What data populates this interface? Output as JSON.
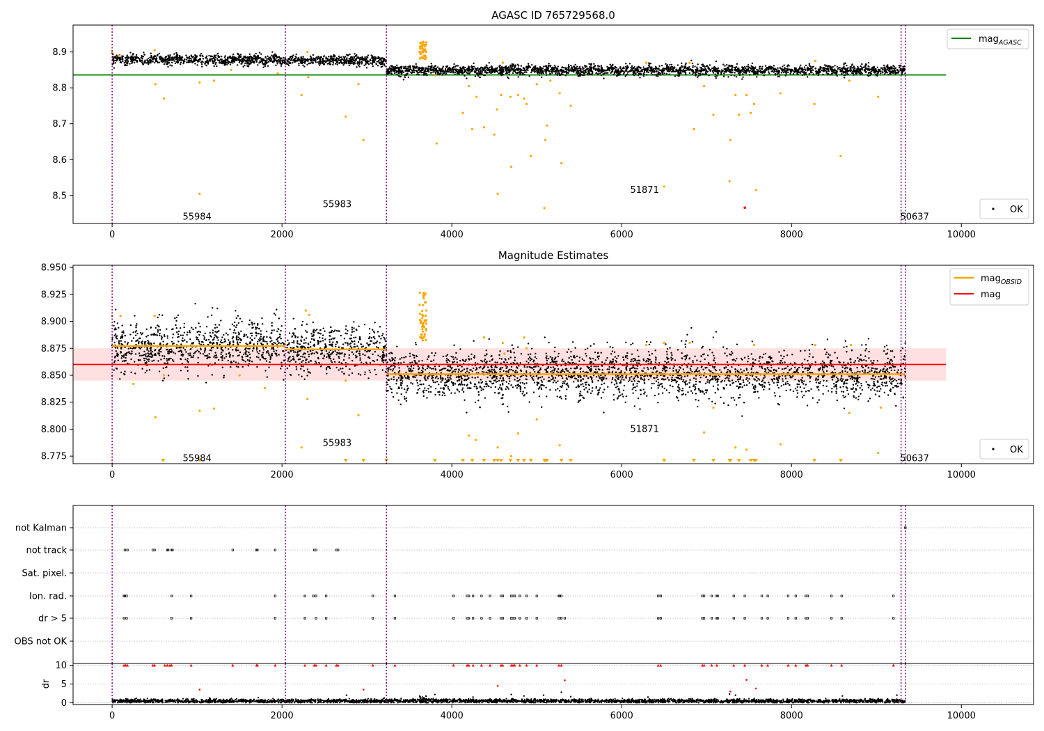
{
  "colors": {
    "ok": "#000000",
    "flagged": "#ffa500",
    "agasc_line": "#008000",
    "obsid_line": "#ffa500",
    "mag_line": "#ff0000",
    "mag_band": "#ffcccc",
    "obsid_boundary": "#800080",
    "flag_warning": "#ff0000",
    "grid": "#b0b0b0"
  },
  "chart_data": [
    {
      "type": "scatter",
      "title": "AGASC ID 765729568.0",
      "xlim": [
        -460,
        10850
      ],
      "ylim": [
        8.422,
        8.975
      ],
      "xticks": [
        0,
        2000,
        4000,
        6000,
        8000,
        10000
      ],
      "yticks": [
        8.5,
        8.6,
        8.7,
        8.8,
        8.9
      ],
      "obsid_boundaries": [
        0,
        2040,
        3230,
        9290,
        9340
      ],
      "obsid_labels": [
        {
          "text": "55984",
          "x": 1000,
          "y": 8.44
        },
        {
          "text": "55983",
          "x": 2650,
          "y": 8.475
        },
        {
          "text": "51871",
          "x": 6270,
          "y": 8.515
        },
        {
          "text": "50637",
          "x": 9450,
          "y": 8.44
        }
      ],
      "mag_agasc": {
        "value": 8.836,
        "x": [
          -460,
          9820
        ]
      },
      "legend": {
        "position": "upper right",
        "entries": [
          {
            "label": "mag",
            "sub": "AGASC"
          }
        ]
      },
      "legend2": {
        "position": "lower right",
        "entries": [
          {
            "label": "OK"
          }
        ]
      },
      "ok_segments": [
        {
          "x": [
            0,
            2040
          ],
          "mean": 8.878,
          "sd": 0.007
        },
        {
          "x": [
            2040,
            3230
          ],
          "mean": 8.876,
          "sd": 0.007
        },
        {
          "x": [
            3230,
            9290
          ],
          "mean": 8.849,
          "sd": 0.007
        },
        {
          "x": [
            9290,
            9340
          ],
          "mean": 8.849,
          "sd": 0.007
        }
      ],
      "flagged_points": [
        [
          0,
          8.9
        ],
        [
          80,
          8.89
        ],
        [
          500,
          8.905
        ],
        [
          510,
          8.81
        ],
        [
          610,
          8.77
        ],
        [
          1030,
          8.815
        ],
        [
          1030,
          8.505
        ],
        [
          1200,
          8.82
        ],
        [
          1400,
          8.85
        ],
        [
          1950,
          8.84
        ],
        [
          2230,
          8.78
        ],
        [
          2300,
          8.9
        ],
        [
          2310,
          8.83
        ],
        [
          2750,
          8.72
        ],
        [
          2900,
          8.81
        ],
        [
          2960,
          8.655
        ],
        [
          3660,
          8.92
        ],
        [
          3680,
          8.915
        ],
        [
          3700,
          8.9
        ],
        [
          3650,
          8.885
        ],
        [
          3800,
          8.835
        ],
        [
          3820,
          8.645
        ],
        [
          4130,
          8.73
        ],
        [
          4200,
          8.805
        ],
        [
          4240,
          8.685
        ],
        [
          4290,
          8.775
        ],
        [
          4380,
          8.69
        ],
        [
          4500,
          8.67
        ],
        [
          4530,
          8.74
        ],
        [
          4540,
          8.505
        ],
        [
          4580,
          8.78
        ],
        [
          4600,
          8.87
        ],
        [
          4690,
          8.775
        ],
        [
          4700,
          8.58
        ],
        [
          4780,
          8.78
        ],
        [
          4850,
          8.77
        ],
        [
          4880,
          8.755
        ],
        [
          4930,
          8.61
        ],
        [
          5000,
          8.81
        ],
        [
          5090,
          8.465
        ],
        [
          5100,
          8.655
        ],
        [
          5120,
          8.695
        ],
        [
          5160,
          8.82
        ],
        [
          5270,
          8.785
        ],
        [
          5290,
          8.59
        ],
        [
          5400,
          8.75
        ],
        [
          6290,
          8.87
        ],
        [
          6500,
          8.525
        ],
        [
          6800,
          8.87
        ],
        [
          6850,
          8.685
        ],
        [
          6970,
          8.805
        ],
        [
          7080,
          8.725
        ],
        [
          7270,
          8.54
        ],
        [
          7280,
          8.655
        ],
        [
          7340,
          8.78
        ],
        [
          7380,
          8.725
        ],
        [
          7470,
          8.78
        ],
        [
          7520,
          8.73
        ],
        [
          7560,
          8.755
        ],
        [
          7580,
          8.515
        ],
        [
          7870,
          8.785
        ],
        [
          8270,
          8.755
        ],
        [
          8280,
          8.875
        ],
        [
          8580,
          8.61
        ],
        [
          8680,
          8.82
        ],
        [
          9020,
          8.775
        ]
      ],
      "red_points": [
        [
          7450,
          8.466
        ]
      ]
    },
    {
      "type": "scatter",
      "title": "Magnitude Estimates",
      "xlim": [
        -460,
        10850
      ],
      "ylim": [
        8.768,
        8.952
      ],
      "xticks": [
        0,
        2000,
        4000,
        6000,
        8000,
        10000
      ],
      "yticks": [
        8.775,
        8.8,
        8.825,
        8.85,
        8.875,
        8.9,
        8.925,
        8.95
      ],
      "obsid_boundaries": [
        0,
        2040,
        3230,
        9290,
        9340
      ],
      "obsid_labels": [
        {
          "text": "55984",
          "x": 1000,
          "y": 8.773
        },
        {
          "text": "55983",
          "x": 2650,
          "y": 8.787
        },
        {
          "text": "51871",
          "x": 6270,
          "y": 8.8
        },
        {
          "text": "50637",
          "x": 9450,
          "y": 8.773
        }
      ],
      "mag": {
        "value": 8.86,
        "band": [
          8.845,
          8.875
        ],
        "x": [
          -460,
          9820
        ]
      },
      "mag_obsid": [
        {
          "x": [
            0,
            2040
          ],
          "value": 8.877
        },
        {
          "x": [
            2040,
            3230
          ],
          "value": 8.874
        },
        {
          "x": [
            3230,
            9290
          ],
          "value": 8.851
        },
        {
          "x": [
            9290,
            9340
          ],
          "value": 8.851
        }
      ],
      "legend": {
        "position": "upper right",
        "entries": [
          {
            "label": "mag",
            "sub": "OBSID"
          },
          {
            "label": "mag"
          }
        ]
      },
      "legend2": {
        "position": "lower right",
        "entries": [
          {
            "label": "OK"
          }
        ]
      },
      "ok_segments": [
        {
          "x": [
            0,
            2040
          ],
          "mean": 8.877,
          "sd": 0.011
        },
        {
          "x": [
            2040,
            3230
          ],
          "mean": 8.874,
          "sd": 0.011
        },
        {
          "x": [
            3230,
            9290
          ],
          "mean": 8.851,
          "sd": 0.011
        },
        {
          "x": [
            9290,
            9340
          ],
          "mean": 8.851,
          "sd": 0.011
        }
      ],
      "flagged_points": [
        [
          0,
          8.905
        ],
        [
          100,
          8.905
        ],
        [
          250,
          8.842
        ],
        [
          500,
          8.905
        ],
        [
          510,
          8.811
        ],
        [
          610,
          8.85
        ],
        [
          1030,
          8.817
        ],
        [
          1200,
          8.819
        ],
        [
          1500,
          8.85
        ],
        [
          1800,
          8.838
        ],
        [
          2230,
          8.783
        ],
        [
          2280,
          8.91
        ],
        [
          2300,
          8.828
        ],
        [
          2320,
          8.906
        ],
        [
          2750,
          8.845
        ],
        [
          2900,
          8.813
        ],
        [
          3650,
          8.895
        ],
        [
          3660,
          8.915
        ],
        [
          3680,
          8.925
        ],
        [
          3700,
          8.91
        ],
        [
          3640,
          8.885
        ],
        [
          3690,
          8.9
        ],
        [
          4200,
          8.794
        ],
        [
          4280,
          8.79
        ],
        [
          4380,
          8.885
        ],
        [
          4540,
          8.783
        ],
        [
          4600,
          8.88
        ],
        [
          4620,
          8.87
        ],
        [
          4700,
          8.775
        ],
        [
          4780,
          8.796
        ],
        [
          4850,
          8.885
        ],
        [
          4880,
          8.875
        ],
        [
          5000,
          8.809
        ],
        [
          5270,
          8.785
        ],
        [
          6290,
          8.878
        ],
        [
          6500,
          8.88
        ],
        [
          6800,
          8.88
        ],
        [
          6970,
          8.797
        ],
        [
          7080,
          8.82
        ],
        [
          7340,
          8.783
        ],
        [
          7470,
          8.781
        ],
        [
          7560,
          8.878
        ],
        [
          7870,
          8.786
        ],
        [
          8280,
          8.878
        ],
        [
          8680,
          8.815
        ],
        [
          8700,
          8.878
        ],
        [
          9020,
          8.778
        ],
        [
          9050,
          8.82
        ]
      ],
      "below_range": [
        600,
        1030,
        2750,
        2960,
        3230,
        3800,
        4130,
        4240,
        4380,
        4500,
        4540,
        4580,
        4690,
        4780,
        4850,
        4930,
        5090,
        5100,
        5120,
        5290,
        5400,
        6500,
        6850,
        7080,
        7270,
        7280,
        7380,
        7520,
        7560,
        7580,
        8270,
        8580
      ]
    },
    {
      "type": "scatter",
      "xlim": [
        -460,
        10850
      ],
      "xticks": [
        0,
        2000,
        4000,
        6000,
        8000,
        10000
      ],
      "obsid_boundaries": [
        0,
        2040,
        3230,
        9290,
        9340
      ],
      "flag_rows": [
        "not Kalman",
        "not track",
        "Sat. pixel.",
        "Ion. rad.",
        "dr > 5",
        "OBS not OK"
      ],
      "flags": {
        "not Kalman": [
          9340
        ],
        "not track": [
          150,
          180,
          480,
          500,
          650,
          660,
          700,
          710,
          1420,
          1700,
          1710,
          1920,
          2380,
          2400,
          2640,
          2660
        ],
        "Sat. pixel.": [],
        "Ion. rad.": [
          140,
          150,
          170,
          700,
          930,
          1920,
          2270,
          2370,
          2400,
          2520,
          3070,
          3330,
          4020,
          4180,
          4200,
          4250,
          4350,
          4450,
          4580,
          4600,
          4700,
          4720,
          4740,
          4800,
          4880,
          5000,
          5260,
          5270,
          5290,
          6430,
          6460,
          6950,
          6970,
          7060,
          7120,
          7130,
          7320,
          7450,
          7650,
          7720,
          7960,
          8050,
          8170,
          8190,
          8470,
          8590,
          9200
        ],
        "dr > 5": [
          140,
          170,
          700,
          930,
          1920,
          2270,
          2400,
          2520,
          3070,
          3330,
          4020,
          4180,
          4200,
          4250,
          4350,
          4450,
          4580,
          4600,
          4700,
          4720,
          4740,
          4800,
          4880,
          5000,
          5260,
          5290,
          5330,
          6430,
          6460,
          6950,
          6970,
          7060,
          7120,
          7130,
          7320,
          7450,
          7650,
          7720,
          7960,
          8050,
          8170,
          8190,
          8470,
          8590,
          9200
        ],
        "OBS not OK": []
      },
      "dr": {
        "ylabel": "dr",
        "ylim": [
          -0.5,
          10.5
        ],
        "yticks": [
          0,
          5,
          10
        ],
        "baseline_mean": 0.45,
        "capped": [
          140,
          160,
          180,
          480,
          500,
          620,
          650,
          680,
          700,
          930,
          1420,
          1700,
          1710,
          1920,
          2270,
          2380,
          2400,
          2520,
          2640,
          2660,
          3070,
          3330,
          4020,
          4180,
          4200,
          4250,
          4350,
          4450,
          4580,
          4600,
          4700,
          4720,
          4740,
          4800,
          4880,
          5000,
          5260,
          5290,
          6430,
          6460,
          6950,
          6970,
          7060,
          7120,
          7320,
          7450,
          7650,
          7720,
          7960,
          8050,
          8170,
          8190,
          8470,
          8590,
          9200
        ],
        "outliers_red": [
          [
            1030,
            3.5
          ],
          [
            2960,
            3.5
          ],
          [
            4540,
            4.5
          ],
          [
            5330,
            6.0
          ],
          [
            7280,
            3.0
          ],
          [
            7470,
            6.1
          ],
          [
            7580,
            3.8
          ]
        ],
        "outliers_black": [
          [
            2760,
            2.0
          ],
          [
            3800,
            2.2
          ],
          [
            4250,
            1.5
          ],
          [
            4700,
            2.2
          ],
          [
            4850,
            1.8
          ],
          [
            5080,
            2.0
          ],
          [
            5290,
            2.8
          ],
          [
            5400,
            1.6
          ],
          [
            6310,
            1.5
          ],
          [
            7270,
            2.3
          ],
          [
            7340,
            2.0
          ],
          [
            8600,
            1.8
          ],
          [
            9240,
            2.0
          ]
        ]
      }
    }
  ]
}
